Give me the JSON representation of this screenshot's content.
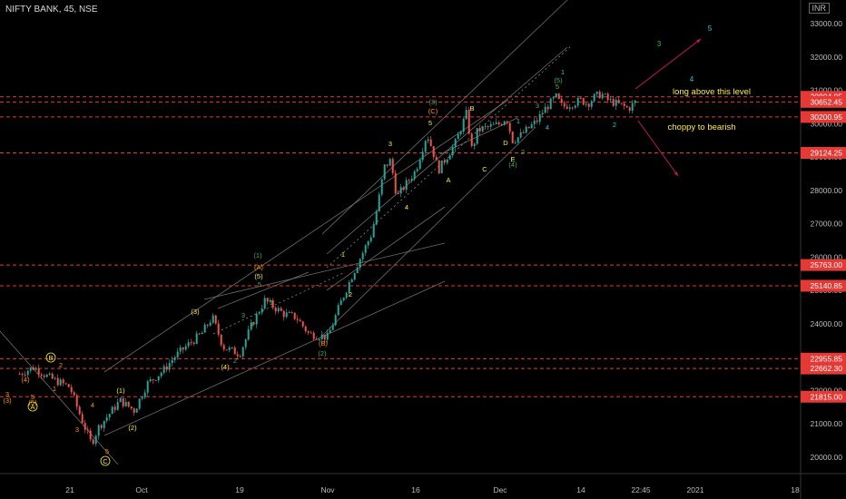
{
  "header": {
    "symbol": "NIFTY BANK, 45, NSE",
    "currency": "INR"
  },
  "colors": {
    "background": "#000000",
    "level_line": "#e53935",
    "candle_up": "#26a69a",
    "candle_down": "#ef5350",
    "channel": "#8a8a8a",
    "wave_yellow": "#ffeb3b",
    "wave_orange": "#ff9800",
    "wave_green": "#4caf50",
    "wave_cyan": "#26c6da",
    "arrow": "#c2185b"
  },
  "chart_data": {
    "type": "candlestick",
    "title": "NIFTY BANK, 45, NSE",
    "ylim": [
      19800,
      33600
    ],
    "y_ticks": [
      20000,
      21000,
      22000,
      23000,
      24000,
      25000,
      26000,
      27000,
      28000,
      29000,
      30000,
      31000,
      32000,
      33000
    ],
    "x_ticks": [
      "21",
      "Oct",
      "19",
      "Nov",
      "16",
      "Dec",
      "14",
      "22:45",
      "2021",
      "18"
    ],
    "levels": [
      30804.05,
      30652.45,
      30200.95,
      29124.25,
      25763.0,
      25140.85,
      22955.85,
      22662.3,
      21815.0
    ],
    "price_path": [
      {
        "date": "2020-09-14",
        "close": 22500
      },
      {
        "date": "2020-09-16",
        "close": 22700
      },
      {
        "date": "2020-09-18",
        "close": 22400
      },
      {
        "date": "2020-09-21",
        "close": 22100
      },
      {
        "date": "2020-09-22",
        "close": 21500
      },
      {
        "date": "2020-09-24",
        "close": 20400
      },
      {
        "date": "2020-09-25",
        "close": 20900
      },
      {
        "date": "2020-09-28",
        "close": 21700
      },
      {
        "date": "2020-09-30",
        "close": 21400
      },
      {
        "date": "2020-10-02",
        "close": 22200
      },
      {
        "date": "2020-10-05",
        "close": 22600
      },
      {
        "date": "2020-10-07",
        "close": 23000
      },
      {
        "date": "2020-10-09",
        "close": 23300
      },
      {
        "date": "2020-10-12",
        "close": 23700
      },
      {
        "date": "2020-10-14",
        "close": 24200
      },
      {
        "date": "2020-10-16",
        "close": 23300
      },
      {
        "date": "2020-10-19",
        "close": 23100
      },
      {
        "date": "2020-10-21",
        "close": 24000
      },
      {
        "date": "2020-10-23",
        "close": 24700
      },
      {
        "date": "2020-10-26",
        "close": 24300
      },
      {
        "date": "2020-10-28",
        "close": 24200
      },
      {
        "date": "2020-10-30",
        "close": 23700
      },
      {
        "date": "2020-11-02",
        "close": 23600
      },
      {
        "date": "2020-11-04",
        "close": 24600
      },
      {
        "date": "2020-11-06",
        "close": 25500
      },
      {
        "date": "2020-11-09",
        "close": 26700
      },
      {
        "date": "2020-11-10",
        "close": 27600
      },
      {
        "date": "2020-11-11",
        "close": 28700
      },
      {
        "date": "2020-11-12",
        "close": 28900
      },
      {
        "date": "2020-11-13",
        "close": 27800
      },
      {
        "date": "2020-11-16",
        "close": 28600
      },
      {
        "date": "2020-11-18",
        "close": 29700
      },
      {
        "date": "2020-11-19",
        "close": 29200
      },
      {
        "date": "2020-11-20",
        "close": 28600
      },
      {
        "date": "2020-11-23",
        "close": 29400
      },
      {
        "date": "2020-11-25",
        "close": 30300
      },
      {
        "date": "2020-11-26",
        "close": 29200
      },
      {
        "date": "2020-11-27",
        "close": 29800
      },
      {
        "date": "2020-12-01",
        "close": 30000
      },
      {
        "date": "2020-12-02",
        "close": 30200
      },
      {
        "date": "2020-12-03",
        "close": 29500
      },
      {
        "date": "2020-12-04",
        "close": 29600
      },
      {
        "date": "2020-12-07",
        "close": 30100
      },
      {
        "date": "2020-12-08",
        "close": 30400
      },
      {
        "date": "2020-12-09",
        "close": 30600
      },
      {
        "date": "2020-12-10",
        "close": 30800
      },
      {
        "date": "2020-12-11",
        "close": 30500
      },
      {
        "date": "2020-12-14",
        "close": 30700
      },
      {
        "date": "2020-12-15",
        "close": 30600
      },
      {
        "date": "2020-12-16",
        "close": 30800
      },
      {
        "date": "2020-12-17",
        "close": 30900
      },
      {
        "date": "2020-12-18",
        "close": 30700
      },
      {
        "date": "2020-12-21",
        "close": 30450
      },
      {
        "date": "2020-12-22",
        "close": 30652
      }
    ],
    "annotations": {
      "long_text": "long above this level",
      "bear_text": "choppy to bearish",
      "projection_labels": [
        "3",
        "4",
        "5"
      ]
    }
  }
}
